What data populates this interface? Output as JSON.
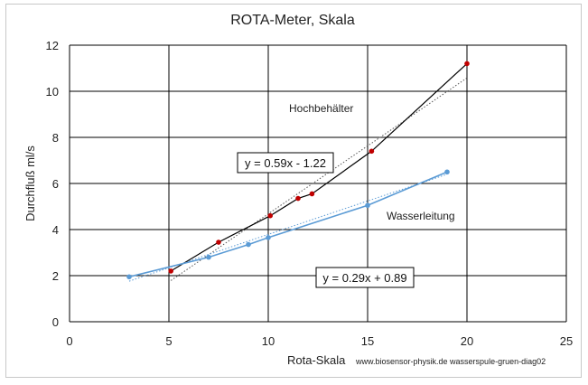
{
  "chart_data": {
    "type": "scatter",
    "title": "ROTA-Meter, Skala",
    "xlabel": "Rota-Skala",
    "ylabel": "Durchfluß ml/s",
    "xlim": [
      0,
      25
    ],
    "ylim": [
      0,
      12
    ],
    "xticks": [
      0,
      5,
      10,
      15,
      20,
      25
    ],
    "yticks": [
      0,
      2,
      4,
      6,
      8,
      10,
      12
    ],
    "grid": true,
    "credit": "www.biosensor-physik.de  wasserspule-gruen-diag02",
    "series": [
      {
        "name": "Hochbehälter",
        "color": "#c00000",
        "line_color": "#000000",
        "x": [
          5.1,
          7.5,
          10.1,
          11.5,
          12.2,
          15.2,
          20.0
        ],
        "y": [
          2.2,
          3.45,
          4.6,
          5.35,
          5.55,
          7.4,
          11.2
        ],
        "trend_label": "y = 0.59x - 1.22",
        "trend": {
          "slope": 0.59,
          "intercept": -1.22,
          "x_range": [
            5.1,
            20.0
          ],
          "color": "#555555"
        }
      },
      {
        "name": "Wasserleitung",
        "color": "#5b9bd5",
        "line_color": "#5b9bd5",
        "x": [
          3.0,
          7.0,
          9.0,
          10.0,
          15.0,
          19.0
        ],
        "y": [
          1.95,
          2.8,
          3.35,
          3.65,
          5.05,
          6.5
        ],
        "trend_label": "y = 0.29x + 0.89",
        "trend": {
          "slope": 0.29,
          "intercept": 0.89,
          "x_range": [
            3.0,
            19.0
          ],
          "color": "#5b9bd5"
        }
      }
    ]
  }
}
